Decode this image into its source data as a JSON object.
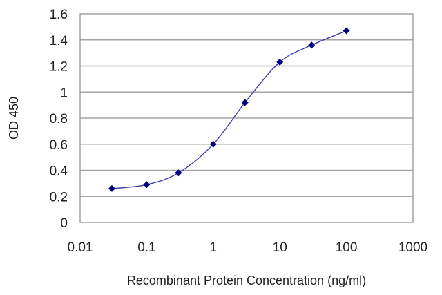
{
  "chart_data": {
    "type": "line",
    "title": "",
    "xlabel": "Recombinant Protein Concentration (ng/ml)",
    "ylabel": "OD 450",
    "x_scale": "log",
    "xlim": [
      0.01,
      1000
    ],
    "ylim": [
      0,
      1.6
    ],
    "x_ticks": [
      "0.01",
      "0.1",
      "1",
      "10",
      "100",
      "1000"
    ],
    "y_ticks": [
      "0",
      "0.2",
      "0.4",
      "0.6",
      "0.8",
      "1",
      "1.2",
      "1.4",
      "1.6"
    ],
    "grid": "horizontal",
    "legend": "none",
    "series": [
      {
        "x": [
          0.03,
          0.1,
          0.3,
          1,
          3,
          10,
          30,
          100
        ],
        "y": [
          0.26,
          0.29,
          0.38,
          0.6,
          0.92,
          1.23,
          1.36,
          1.47
        ],
        "color": "#00007f"
      }
    ],
    "colors": {
      "plot_border": "#8c8c8c",
      "grid": "#a6a6a6",
      "line": "#3a3ab0",
      "marker": "#00007f"
    }
  }
}
